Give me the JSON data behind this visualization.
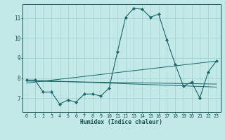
{
  "title": "",
  "xlabel": "Humidex (Indice chaleur)",
  "background_color": "#c2e8e8",
  "grid_color": "#a8d4d4",
  "line_color": "#1a6868",
  "xlim": [
    -0.5,
    23.5
  ],
  "ylim": [
    6.3,
    11.7
  ],
  "yticks": [
    7,
    8,
    9,
    10,
    11
  ],
  "xticks": [
    0,
    1,
    2,
    3,
    4,
    5,
    6,
    7,
    8,
    9,
    10,
    11,
    12,
    13,
    14,
    15,
    16,
    17,
    18,
    19,
    20,
    21,
    22,
    23
  ],
  "main_series": {
    "x": [
      0,
      1,
      2,
      3,
      4,
      5,
      6,
      7,
      8,
      9,
      10,
      11,
      12,
      13,
      14,
      15,
      16,
      17,
      18,
      19,
      20,
      21,
      22,
      23
    ],
    "y": [
      7.9,
      7.9,
      7.3,
      7.3,
      6.7,
      6.9,
      6.8,
      7.2,
      7.2,
      7.1,
      7.5,
      9.3,
      11.05,
      11.5,
      11.45,
      11.05,
      11.2,
      9.9,
      8.7,
      7.6,
      7.8,
      7.0,
      8.3,
      8.85
    ]
  },
  "trend_lines": [
    {
      "x": [
        0,
        23
      ],
      "y": [
        7.9,
        7.55
      ]
    },
    {
      "x": [
        0,
        23
      ],
      "y": [
        7.85,
        7.7
      ]
    },
    {
      "x": [
        0,
        23
      ],
      "y": [
        7.75,
        8.85
      ]
    }
  ]
}
